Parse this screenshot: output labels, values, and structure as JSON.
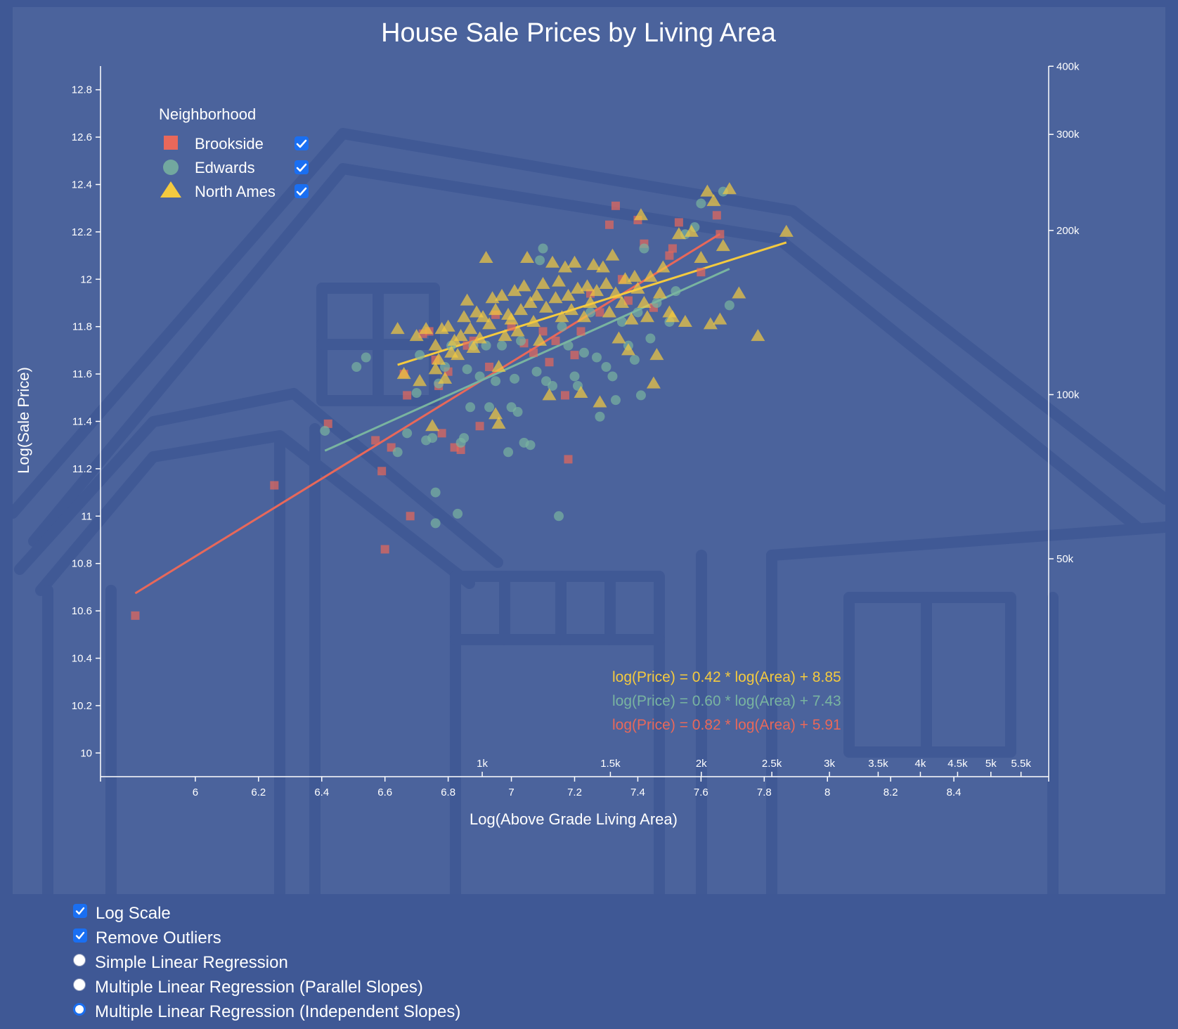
{
  "controls": {
    "log_scale_label": "Log Scale",
    "log_scale_checked": true,
    "remove_outliers_label": "Remove Outliers",
    "remove_outliers_checked": true,
    "regression_options": [
      {
        "label": "Simple Linear Regression",
        "selected": false
      },
      {
        "label": "Multiple Linear Regression (Parallel Slopes)",
        "selected": false
      },
      {
        "label": "Multiple Linear Regression (Independent Slopes)",
        "selected": true
      }
    ]
  },
  "chart_data": {
    "type": "scatter",
    "title": "House Sale Prices by Living Area",
    "xlabel": "Log(Above Grade Living Area)",
    "ylabel": "Log(Sale Price)",
    "xlim": [
      5.7,
      8.7
    ],
    "ylim": [
      9.9,
      12.9
    ],
    "grid": false,
    "legend": {
      "title": "Neighborhood",
      "position": "top-left"
    },
    "x_ticks": [
      "6",
      "6.2",
      "6.4",
      "6.6",
      "6.8",
      "7",
      "7.2",
      "7.4",
      "7.6",
      "7.8",
      "8",
      "8.2",
      "8.4"
    ],
    "y_ticks": [
      "10",
      "10.2",
      "10.4",
      "10.6",
      "10.8",
      "11",
      "11.2",
      "11.4",
      "11.6",
      "11.8",
      "12",
      "12.2",
      "12.4",
      "12.6",
      "12.8"
    ],
    "secondary_x_ticks": [
      {
        "label": "1k",
        "value": 1000
      },
      {
        "label": "1.5k",
        "value": 1500
      },
      {
        "label": "2k",
        "value": 2000
      },
      {
        "label": "2.5k",
        "value": 2500
      },
      {
        "label": "3k",
        "value": 3000
      },
      {
        "label": "3.5k",
        "value": 3500
      },
      {
        "label": "4k",
        "value": 4000
      },
      {
        "label": "4.5k",
        "value": 4500
      },
      {
        "label": "5k",
        "value": 5000
      },
      {
        "label": "5.5k",
        "value": 5500
      }
    ],
    "secondary_y_ticks": [
      {
        "label": "50k",
        "value": 50000
      },
      {
        "label": "100k",
        "value": 100000
      },
      {
        "label": "200k",
        "value": 200000
      },
      {
        "label": "300k",
        "value": 300000
      },
      {
        "label": "400k",
        "value": 400000
      }
    ],
    "series": [
      {
        "name": "Brookside",
        "color": "#e8685a",
        "marker": "square",
        "checked": true,
        "equation": "log(Price) = 0.82 * log(Area) + 5.91",
        "fit": {
          "slope": 0.82,
          "intercept": 5.91,
          "x_range": [
            5.81,
            7.66
          ]
        },
        "points": [
          [
            5.81,
            10.58
          ],
          [
            6.25,
            11.13
          ],
          [
            6.42,
            11.39
          ],
          [
            6.57,
            11.32
          ],
          [
            6.59,
            11.19
          ],
          [
            6.6,
            10.86
          ],
          [
            6.62,
            11.29
          ],
          [
            6.66,
            11.6
          ],
          [
            6.67,
            11.51
          ],
          [
            6.68,
            11.0
          ],
          [
            6.72,
            11.77
          ],
          [
            6.74,
            11.78
          ],
          [
            6.76,
            11.66
          ],
          [
            6.77,
            11.55
          ],
          [
            6.78,
            11.35
          ],
          [
            6.8,
            11.61
          ],
          [
            6.82,
            11.29
          ],
          [
            6.84,
            11.28
          ],
          [
            6.86,
            11.72
          ],
          [
            6.88,
            11.74
          ],
          [
            6.9,
            11.38
          ],
          [
            6.93,
            11.63
          ],
          [
            6.95,
            11.85
          ],
          [
            7.0,
            11.8
          ],
          [
            7.04,
            11.73
          ],
          [
            7.07,
            11.69
          ],
          [
            7.1,
            11.78
          ],
          [
            7.12,
            11.65
          ],
          [
            7.14,
            11.74
          ],
          [
            7.17,
            11.51
          ],
          [
            7.18,
            11.24
          ],
          [
            7.2,
            11.68
          ],
          [
            7.22,
            11.78
          ],
          [
            7.25,
            11.94
          ],
          [
            7.28,
            11.86
          ],
          [
            7.31,
            12.23
          ],
          [
            7.33,
            12.31
          ],
          [
            7.35,
            12.0
          ],
          [
            7.37,
            11.91
          ],
          [
            7.4,
            12.25
          ],
          [
            7.42,
            12.15
          ],
          [
            7.45,
            11.88
          ],
          [
            7.5,
            12.1
          ],
          [
            7.51,
            12.13
          ],
          [
            7.53,
            12.24
          ],
          [
            7.6,
            12.03
          ],
          [
            7.65,
            12.27
          ],
          [
            7.66,
            12.19
          ]
        ]
      },
      {
        "name": "Edwards",
        "color": "#79b4a0",
        "marker": "circle",
        "checked": true,
        "equation": "log(Price) = 0.60 * log(Area) + 7.43",
        "fit": {
          "slope": 0.6,
          "intercept": 7.43,
          "x_range": [
            6.41,
            7.69
          ]
        },
        "points": [
          [
            6.41,
            11.36
          ],
          [
            6.51,
            11.63
          ],
          [
            6.54,
            11.67
          ],
          [
            6.64,
            11.27
          ],
          [
            6.67,
            11.35
          ],
          [
            6.7,
            11.52
          ],
          [
            6.71,
            11.68
          ],
          [
            6.73,
            11.32
          ],
          [
            6.75,
            11.33
          ],
          [
            6.76,
            11.1
          ],
          [
            6.76,
            10.97
          ],
          [
            6.77,
            11.56
          ],
          [
            6.79,
            11.63
          ],
          [
            6.81,
            11.72
          ],
          [
            6.83,
            11.01
          ],
          [
            6.84,
            11.31
          ],
          [
            6.85,
            11.33
          ],
          [
            6.86,
            11.62
          ],
          [
            6.87,
            11.46
          ],
          [
            6.88,
            11.72
          ],
          [
            6.9,
            11.59
          ],
          [
            6.92,
            11.72
          ],
          [
            6.93,
            11.46
          ],
          [
            6.95,
            11.57
          ],
          [
            6.97,
            11.72
          ],
          [
            6.99,
            11.27
          ],
          [
            7.0,
            11.46
          ],
          [
            7.01,
            11.58
          ],
          [
            7.02,
            11.44
          ],
          [
            7.03,
            11.74
          ],
          [
            7.04,
            11.31
          ],
          [
            7.06,
            11.3
          ],
          [
            7.08,
            11.61
          ],
          [
            7.09,
            12.08
          ],
          [
            7.1,
            12.13
          ],
          [
            7.11,
            11.57
          ],
          [
            7.13,
            11.55
          ],
          [
            7.15,
            11.0
          ],
          [
            7.16,
            11.8
          ],
          [
            7.18,
            11.72
          ],
          [
            7.2,
            11.59
          ],
          [
            7.21,
            11.55
          ],
          [
            7.23,
            11.69
          ],
          [
            7.25,
            11.86
          ],
          [
            7.27,
            11.67
          ],
          [
            7.28,
            11.42
          ],
          [
            7.3,
            11.63
          ],
          [
            7.32,
            11.59
          ],
          [
            7.33,
            11.49
          ],
          [
            7.35,
            11.82
          ],
          [
            7.37,
            11.72
          ],
          [
            7.39,
            11.66
          ],
          [
            7.4,
            11.86
          ],
          [
            7.41,
            11.51
          ],
          [
            7.42,
            12.13
          ],
          [
            7.44,
            11.75
          ],
          [
            7.46,
            11.9
          ],
          [
            7.5,
            11.82
          ],
          [
            7.52,
            11.95
          ],
          [
            7.55,
            12.19
          ],
          [
            7.58,
            12.22
          ],
          [
            7.6,
            12.32
          ],
          [
            7.67,
            12.37
          ],
          [
            7.69,
            11.89
          ]
        ]
      },
      {
        "name": "North Ames",
        "color": "#f4ca3f",
        "marker": "triangle",
        "checked": true,
        "equation": "log(Price) = 0.42 * log(Area) + 8.85",
        "fit": {
          "slope": 0.42,
          "intercept": 8.85,
          "x_range": [
            6.64,
            7.87
          ]
        },
        "points": [
          [
            6.64,
            11.79
          ],
          [
            6.66,
            11.6
          ],
          [
            6.7,
            11.76
          ],
          [
            6.71,
            11.57
          ],
          [
            6.73,
            11.79
          ],
          [
            6.75,
            11.38
          ],
          [
            6.76,
            11.72
          ],
          [
            6.76,
            11.62
          ],
          [
            6.77,
            11.66
          ],
          [
            6.78,
            11.79
          ],
          [
            6.79,
            11.58
          ],
          [
            6.8,
            11.8
          ],
          [
            6.81,
            11.69
          ],
          [
            6.82,
            11.74
          ],
          [
            6.83,
            11.68
          ],
          [
            6.84,
            11.76
          ],
          [
            6.85,
            11.84
          ],
          [
            6.86,
            11.91
          ],
          [
            6.87,
            11.79
          ],
          [
            6.88,
            11.71
          ],
          [
            6.89,
            11.86
          ],
          [
            6.9,
            11.75
          ],
          [
            6.91,
            11.84
          ],
          [
            6.92,
            12.09
          ],
          [
            6.93,
            11.81
          ],
          [
            6.94,
            11.92
          ],
          [
            6.95,
            11.87
          ],
          [
            6.95,
            11.43
          ],
          [
            6.96,
            11.39
          ],
          [
            6.96,
            11.63
          ],
          [
            6.97,
            11.93
          ],
          [
            6.98,
            11.76
          ],
          [
            6.99,
            11.85
          ],
          [
            7.0,
            11.83
          ],
          [
            7.01,
            11.95
          ],
          [
            7.02,
            11.78
          ],
          [
            7.03,
            11.87
          ],
          [
            7.04,
            11.97
          ],
          [
            7.05,
            12.09
          ],
          [
            7.06,
            11.9
          ],
          [
            7.07,
            11.82
          ],
          [
            7.08,
            11.93
          ],
          [
            7.09,
            11.74
          ],
          [
            7.1,
            11.98
          ],
          [
            7.11,
            11.88
          ],
          [
            7.12,
            11.51
          ],
          [
            7.13,
            12.07
          ],
          [
            7.14,
            11.92
          ],
          [
            7.15,
            11.99
          ],
          [
            7.16,
            11.84
          ],
          [
            7.17,
            12.05
          ],
          [
            7.18,
            11.93
          ],
          [
            7.19,
            11.87
          ],
          [
            7.2,
            12.07
          ],
          [
            7.21,
            11.96
          ],
          [
            7.22,
            11.52
          ],
          [
            7.23,
            11.84
          ],
          [
            7.24,
            11.97
          ],
          [
            7.25,
            11.9
          ],
          [
            7.26,
            12.06
          ],
          [
            7.27,
            11.95
          ],
          [
            7.28,
            11.48
          ],
          [
            7.29,
            12.05
          ],
          [
            7.3,
            11.98
          ],
          [
            7.31,
            11.86
          ],
          [
            7.32,
            12.1
          ],
          [
            7.33,
            11.94
          ],
          [
            7.34,
            11.75
          ],
          [
            7.35,
            11.9
          ],
          [
            7.36,
            12.0
          ],
          [
            7.37,
            11.7
          ],
          [
            7.38,
            11.83
          ],
          [
            7.39,
            12.01
          ],
          [
            7.4,
            11.96
          ],
          [
            7.41,
            12.27
          ],
          [
            7.42,
            11.9
          ],
          [
            7.43,
            11.84
          ],
          [
            7.44,
            12.01
          ],
          [
            7.45,
            11.56
          ],
          [
            7.46,
            11.68
          ],
          [
            7.47,
            11.94
          ],
          [
            7.48,
            12.05
          ],
          [
            7.5,
            11.86
          ],
          [
            7.51,
            11.84
          ],
          [
            7.53,
            12.19
          ],
          [
            7.55,
            11.82
          ],
          [
            7.57,
            12.2
          ],
          [
            7.6,
            12.09
          ],
          [
            7.62,
            12.37
          ],
          [
            7.63,
            11.81
          ],
          [
            7.64,
            12.33
          ],
          [
            7.66,
            11.83
          ],
          [
            7.67,
            12.14
          ],
          [
            7.69,
            12.38
          ],
          [
            7.72,
            11.94
          ],
          [
            7.78,
            11.76
          ],
          [
            7.87,
            12.2
          ]
        ]
      }
    ]
  }
}
